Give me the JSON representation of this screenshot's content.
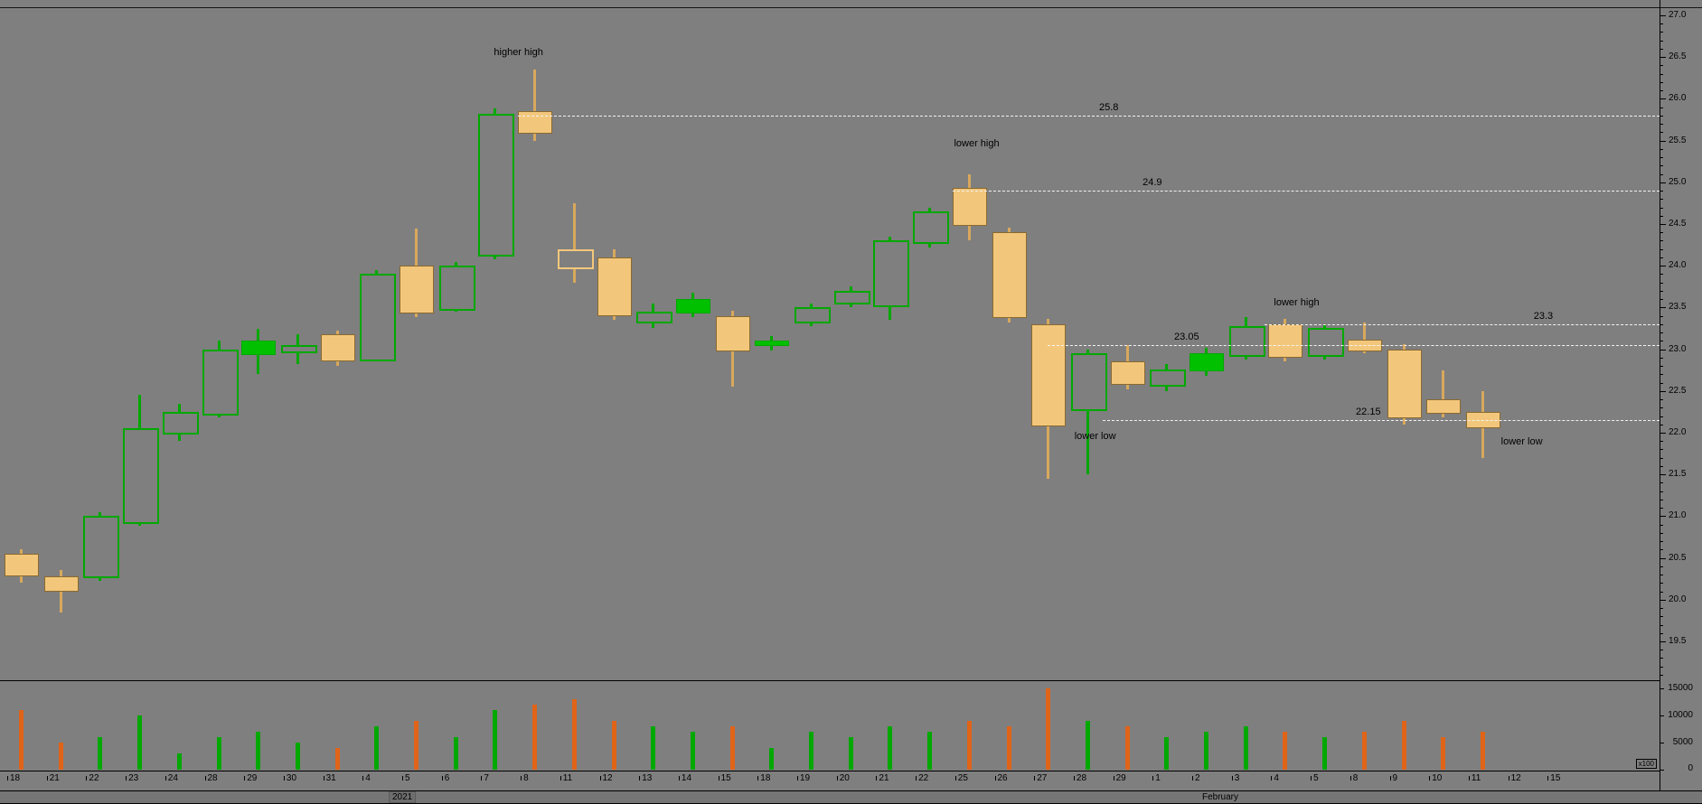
{
  "chart_data": {
    "type": "candlestick",
    "title": "",
    "legend": "none",
    "grid": "off",
    "price_axis": {
      "side": "right",
      "step": 0.5,
      "labels": [
        "27.0",
        "26.5",
        "26.0",
        "25.5",
        "25.0",
        "24.5",
        "24.0",
        "23.5",
        "23.0",
        "22.5",
        "22.0",
        "21.5",
        "21.0",
        "20.5",
        "20.0",
        "19.5"
      ]
    },
    "volume_axis": {
      "labels": [
        "15000",
        "10000",
        "5000"
      ],
      "zero_label": "0",
      "multiplier": "x100",
      "max": 15000
    },
    "x_axis": {
      "tick_labels": [
        "18",
        "21",
        "22",
        "23",
        "24",
        "28",
        "29",
        "30",
        "31",
        "4",
        "5",
        "6",
        "7",
        "8",
        "11",
        "12",
        "13",
        "14",
        "15",
        "18",
        "19",
        "20",
        "21",
        "22",
        "25",
        "26",
        "27",
        "28",
        "29",
        "1",
        "2",
        "3",
        "4",
        "5",
        "8",
        "9",
        "10",
        "11",
        "12",
        "15"
      ],
      "year_label": "2021",
      "month_label": "February"
    },
    "candles": [
      {
        "d": "Dec 18",
        "o": 20.55,
        "h": 20.6,
        "l": 20.2,
        "c": 20.3,
        "t": "down",
        "v": 11000
      },
      {
        "d": "Dec 21",
        "o": 20.28,
        "h": 20.35,
        "l": 19.85,
        "c": 20.12,
        "t": "down",
        "v": 5000
      },
      {
        "d": "Dec 22",
        "o": 20.3,
        "h": 21.05,
        "l": 20.22,
        "c": 21.0,
        "t": "up",
        "v": 6000
      },
      {
        "d": "Dec 23",
        "o": 20.95,
        "h": 22.45,
        "l": 20.88,
        "c": 22.05,
        "t": "up",
        "v": 10000
      },
      {
        "d": "Dec 24",
        "o": 22.02,
        "h": 22.35,
        "l": 21.9,
        "c": 22.25,
        "t": "up",
        "v": 3000
      },
      {
        "d": "Dec 28",
        "o": 22.25,
        "h": 23.1,
        "l": 22.18,
        "c": 23.0,
        "t": "up",
        "v": 6000
      },
      {
        "d": "Dec 29",
        "o": 22.95,
        "h": 23.25,
        "l": 22.7,
        "c": 23.1,
        "t": "up_solid",
        "v": 7000
      },
      {
        "d": "Dec 30",
        "o": 23.0,
        "h": 23.18,
        "l": 22.82,
        "c": 23.05,
        "t": "up",
        "v": 5000
      },
      {
        "d": "Dec 31",
        "o": 23.18,
        "h": 23.22,
        "l": 22.8,
        "c": 22.88,
        "t": "down",
        "v": 4000
      },
      {
        "d": "Jan 4",
        "o": 22.9,
        "h": 23.95,
        "l": 22.85,
        "c": 23.9,
        "t": "up",
        "v": 8000
      },
      {
        "d": "Jan 5",
        "o": 24.0,
        "h": 24.45,
        "l": 23.38,
        "c": 23.45,
        "t": "down",
        "v": 9000
      },
      {
        "d": "Jan 6",
        "o": 23.5,
        "h": 24.05,
        "l": 23.45,
        "c": 24.0,
        "t": "up",
        "v": 6000
      },
      {
        "d": "Jan 7",
        "o": 24.15,
        "h": 25.88,
        "l": 24.08,
        "c": 25.82,
        "t": "up",
        "v": 11000
      },
      {
        "d": "Jan 8",
        "o": 25.85,
        "h": 26.35,
        "l": 25.5,
        "c": 25.6,
        "t": "down",
        "v": 12000
      },
      {
        "d": "Jan 11",
        "o": 24.2,
        "h": 24.75,
        "l": 23.8,
        "c": 24.0,
        "t": "down_hollow",
        "v": 13000
      },
      {
        "d": "Jan 12",
        "o": 24.1,
        "h": 24.2,
        "l": 23.35,
        "c": 23.42,
        "t": "down",
        "v": 9000
      },
      {
        "d": "Jan 13",
        "o": 23.35,
        "h": 23.55,
        "l": 23.25,
        "c": 23.45,
        "t": "up",
        "v": 8000
      },
      {
        "d": "Jan 14",
        "o": 23.45,
        "h": 23.68,
        "l": 23.38,
        "c": 23.6,
        "t": "up_solid",
        "v": 7000
      },
      {
        "d": "Jan 15",
        "o": 23.4,
        "h": 23.46,
        "l": 22.55,
        "c": 23.0,
        "t": "down",
        "v": 8000
      },
      {
        "d": "Jan 18",
        "o": 23.06,
        "h": 23.16,
        "l": 22.98,
        "c": 23.1,
        "t": "up_solid",
        "v": 4000
      },
      {
        "d": "Jan 19",
        "o": 23.35,
        "h": 23.55,
        "l": 23.28,
        "c": 23.5,
        "t": "up",
        "v": 7000
      },
      {
        "d": "Jan 20",
        "o": 23.58,
        "h": 23.75,
        "l": 23.5,
        "c": 23.7,
        "t": "up",
        "v": 6000
      },
      {
        "d": "Jan 21",
        "o": 23.55,
        "h": 24.35,
        "l": 23.35,
        "c": 24.3,
        "t": "up",
        "v": 8000
      },
      {
        "d": "Jan 22",
        "o": 24.3,
        "h": 24.7,
        "l": 24.22,
        "c": 24.65,
        "t": "up",
        "v": 7000
      },
      {
        "d": "Jan 25",
        "o": 24.93,
        "h": 25.1,
        "l": 24.3,
        "c": 24.5,
        "t": "down",
        "v": 9000
      },
      {
        "d": "Jan 26",
        "o": 24.4,
        "h": 24.46,
        "l": 23.32,
        "c": 23.4,
        "t": "down",
        "v": 8000
      },
      {
        "d": "Jan 27",
        "o": 23.3,
        "h": 23.36,
        "l": 21.45,
        "c": 22.1,
        "t": "down",
        "v": 15000
      },
      {
        "d": "Jan 28",
        "o": 22.3,
        "h": 23.0,
        "l": 21.5,
        "c": 22.95,
        "t": "up",
        "v": 9000
      },
      {
        "d": "Jan 29",
        "o": 22.85,
        "h": 23.05,
        "l": 22.52,
        "c": 22.6,
        "t": "down",
        "v": 8000
      },
      {
        "d": "Feb 1",
        "o": 22.6,
        "h": 22.82,
        "l": 22.5,
        "c": 22.76,
        "t": "up",
        "v": 6000
      },
      {
        "d": "Feb 2",
        "o": 22.76,
        "h": 23.02,
        "l": 22.68,
        "c": 22.95,
        "t": "up_solid",
        "v": 7000
      },
      {
        "d": "Feb 3",
        "o": 22.95,
        "h": 23.38,
        "l": 22.88,
        "c": 23.28,
        "t": "up",
        "v": 8000
      },
      {
        "d": "Feb 4",
        "o": 23.3,
        "h": 23.36,
        "l": 22.85,
        "c": 22.92,
        "t": "down",
        "v": 7000
      },
      {
        "d": "Feb 5",
        "o": 22.95,
        "h": 23.3,
        "l": 22.88,
        "c": 23.26,
        "t": "up",
        "v": 6000
      },
      {
        "d": "Feb 8",
        "o": 23.12,
        "h": 23.32,
        "l": 22.95,
        "c": 23.0,
        "t": "down",
        "v": 7000
      },
      {
        "d": "Feb 9",
        "o": 23.0,
        "h": 23.06,
        "l": 22.1,
        "c": 22.2,
        "t": "down",
        "v": 9000
      },
      {
        "d": "Feb 10",
        "o": 22.4,
        "h": 22.75,
        "l": 22.18,
        "c": 22.25,
        "t": "down",
        "v": 6000
      },
      {
        "d": "Feb 11",
        "o": 22.25,
        "h": 22.5,
        "l": 21.7,
        "c": 22.08,
        "t": "down",
        "v": 7000
      }
    ],
    "levels": [
      {
        "label": "25.8",
        "price": 25.8,
        "from_index": 13,
        "label_index": 27.3
      },
      {
        "label": "24.9",
        "price": 24.9,
        "from_index": 24,
        "label_index": 28.4
      },
      {
        "label": "23.3",
        "price": 23.3,
        "from_index": 31.9,
        "label_index": 38.3
      },
      {
        "label": "23.05",
        "price": 23.05,
        "from_index": 26.4,
        "label_index": 29.2
      },
      {
        "label": "22.15",
        "price": 22.15,
        "from_index": 27.8,
        "label_index": 33.8
      }
    ],
    "annotations": [
      {
        "text": "higher high",
        "index": 12.6,
        "price": 26.55
      },
      {
        "text": "lower high",
        "index": 24.2,
        "price": 25.45
      },
      {
        "text": "lower low",
        "index": 27.2,
        "price": 21.95
      },
      {
        "text": "lower high",
        "index": 32.3,
        "price": 23.55
      },
      {
        "text": "lower low",
        "index": 38.0,
        "price": 21.88
      }
    ]
  },
  "colors": {
    "background": "#7f7f7f",
    "bull_outline": "#00a800",
    "bull_solid": "#00c000",
    "bear_fill": "#f3c77b",
    "bear_border": "#8a6a30",
    "bear_wick": "#d8a85c",
    "volume_up": "#00a800",
    "volume_down": "#e06418",
    "level_line": "#f2f2f2",
    "text": "#000000"
  }
}
